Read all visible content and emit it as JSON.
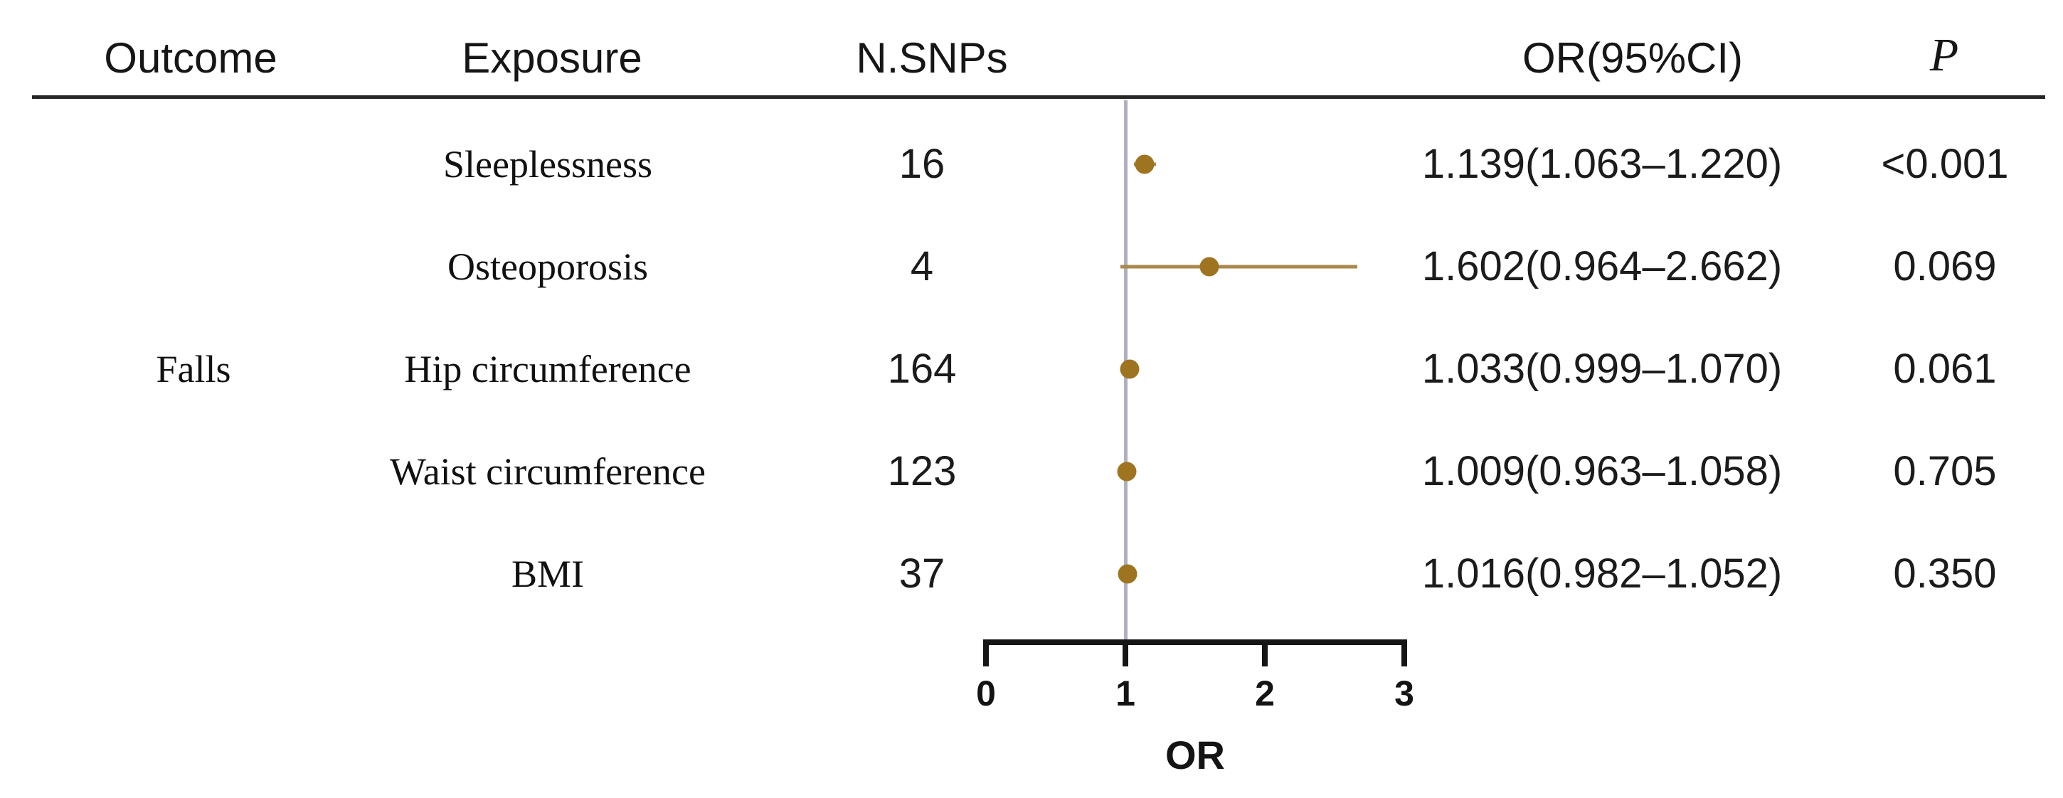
{
  "chart_data": {
    "type": "scatter",
    "variant": "forest-plot",
    "title": "",
    "xlabel": "OR",
    "xlim": [
      0,
      3
    ],
    "xticks": [
      "0",
      "1",
      "2",
      "3"
    ],
    "ref_line_x": 1,
    "grid": false,
    "headers": {
      "outcome": "Outcome",
      "exposure": "Exposure",
      "nsnps": "N.SNPs",
      "orci": "OR(95%CI)",
      "p": "P"
    },
    "outcome_group_label": "Falls",
    "rows": [
      {
        "exposure": "Sleeplessness",
        "n_snps": "16",
        "or": 1.139,
        "ci_low": 1.063,
        "ci_high": 1.22,
        "or_ci_label": "1.139(1.063–1.220)",
        "p_label": "<0.001"
      },
      {
        "exposure": "Osteoporosis",
        "n_snps": "4",
        "or": 1.602,
        "ci_low": 0.964,
        "ci_high": 2.662,
        "or_ci_label": "1.602(0.964–2.662)",
        "p_label": "0.069"
      },
      {
        "exposure": "Hip circumference",
        "n_snps": "164",
        "or": 1.033,
        "ci_low": 0.999,
        "ci_high": 1.07,
        "or_ci_label": "1.033(0.999–1.070)",
        "p_label": "0.061"
      },
      {
        "exposure": "Waist circumference",
        "n_snps": "123",
        "or": 1.009,
        "ci_low": 0.963,
        "ci_high": 1.058,
        "or_ci_label": "1.009(0.963–1.058)",
        "p_label": "0.705"
      },
      {
        "exposure": "BMI",
        "n_snps": "37",
        "or": 1.016,
        "ci_low": 0.982,
        "ci_high": 1.052,
        "or_ci_label": "1.016(0.982–1.052)",
        "p_label": "0.350"
      }
    ]
  },
  "colors": {
    "point": "#9f7420",
    "ci_line": "#aa8a4c",
    "reference_line": "#b0afc2",
    "axis": "#161616",
    "header_rule": "#262626",
    "text": "#1b1b1b",
    "background": "#ffffff"
  }
}
